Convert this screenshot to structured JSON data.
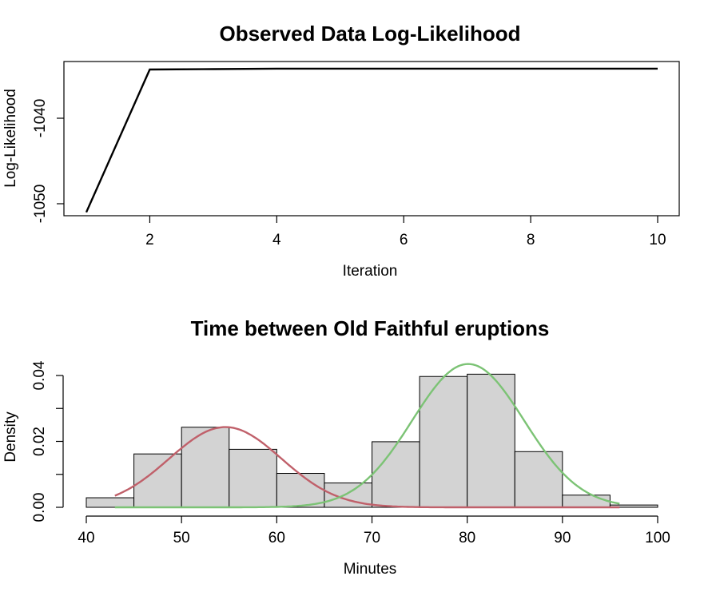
{
  "chart_data": [
    {
      "type": "line",
      "title": "Observed Data Log-Likelihood",
      "xlabel": "Iteration",
      "ylabel": "Log-Likelihood",
      "xlim": [
        1,
        10
      ],
      "ylim": [
        -1052,
        -1034
      ],
      "x_ticks": [
        2,
        4,
        6,
        8,
        10
      ],
      "y_ticks": [
        -1050,
        -1040
      ],
      "x": [
        1,
        2,
        3,
        4,
        5,
        6,
        7,
        8,
        9,
        10
      ],
      "y": [
        -1051.0,
        -1034.3,
        -1034.25,
        -1034.2,
        -1034.2,
        -1034.2,
        -1034.2,
        -1034.2,
        -1034.2,
        -1034.2
      ],
      "line_color": "#000000"
    },
    {
      "type": "bar",
      "subtype": "histogram",
      "title": "Time between Old Faithful eruptions",
      "xlabel": "Minutes",
      "ylabel": "Density",
      "xlim": [
        40,
        100
      ],
      "ylim": [
        0,
        0.045
      ],
      "x_ticks": [
        40,
        50,
        60,
        70,
        80,
        90,
        100
      ],
      "y_ticks": [
        0.0,
        0.02,
        0.04
      ],
      "y_tick_labels": [
        "0.00",
        "0.02",
        "0.04"
      ],
      "bins": [
        {
          "from": 40,
          "to": 45,
          "density": 0.0029
        },
        {
          "from": 45,
          "to": 50,
          "density": 0.0162
        },
        {
          "from": 50,
          "to": 55,
          "density": 0.0243
        },
        {
          "from": 55,
          "to": 60,
          "density": 0.0176
        },
        {
          "from": 60,
          "to": 65,
          "density": 0.0103
        },
        {
          "from": 65,
          "to": 70,
          "density": 0.0074
        },
        {
          "from": 70,
          "to": 75,
          "density": 0.0199
        },
        {
          "from": 75,
          "to": 80,
          "density": 0.0397
        },
        {
          "from": 80,
          "to": 85,
          "density": 0.0404
        },
        {
          "from": 85,
          "to": 90,
          "density": 0.0169
        },
        {
          "from": 90,
          "to": 95,
          "density": 0.0037
        },
        {
          "from": 95,
          "to": 100,
          "density": 0.0007
        }
      ],
      "bar_color": "#d3d3d3",
      "series": [
        {
          "mean": 54.6,
          "sd": 5.9,
          "weight": 0.36,
          "x_range": [
            43,
            96
          ],
          "color": "#c0606a"
        },
        {
          "mean": 80.1,
          "sd": 5.87,
          "weight": 0.64,
          "x_range": [
            43,
            96
          ],
          "color": "#7cc375"
        }
      ]
    }
  ]
}
